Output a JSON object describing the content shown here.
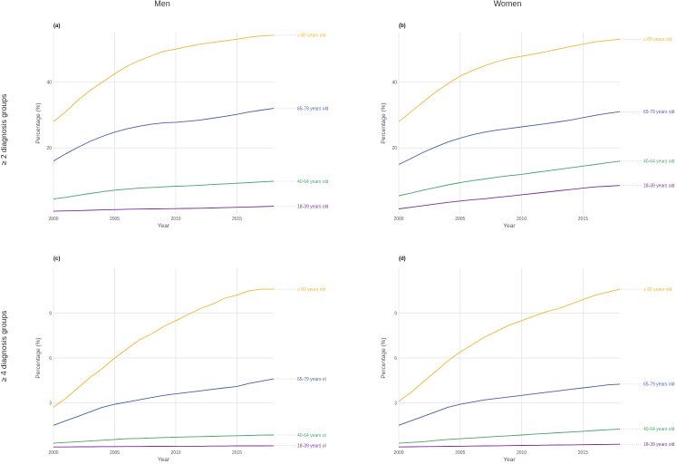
{
  "figure": {
    "col_titles": [
      "Men",
      "Women"
    ],
    "row_titles": [
      "≥ 2 diagnosis groups",
      "≥ 4 diagnosis groups"
    ]
  },
  "colors": {
    "80plus": "#f2b634",
    "65-79": "#4a5fa8",
    "40-64": "#4aa36b",
    "18-39": "#7b2f9b"
  },
  "chart_data": [
    {
      "type": "line",
      "panel": "(a)",
      "title": "(a)",
      "xlabel": "Year",
      "ylabel": "Percentage (%)",
      "xlim": [
        2000,
        2018
      ],
      "ylim": [
        0,
        55
      ],
      "xticks": [
        2000,
        2005,
        2010,
        2015
      ],
      "yticks": [
        20,
        40
      ],
      "x": [
        2000,
        2001,
        2002,
        2003,
        2004,
        2005,
        2006,
        2007,
        2008,
        2009,
        2010,
        2011,
        2012,
        2013,
        2014,
        2015,
        2016,
        2017,
        2018
      ],
      "series": [
        {
          "key": "80plus",
          "name": "≥ 80 years old",
          "values": [
            28,
            31,
            34.5,
            37.5,
            40,
            42.5,
            44.8,
            46.5,
            48,
            49.3,
            50,
            50.8,
            51.5,
            52,
            52.5,
            53,
            53.6,
            54,
            54.2
          ]
        },
        {
          "key": "65-79",
          "name": "65-79 years old",
          "values": [
            16,
            18.2,
            20.2,
            22,
            23.5,
            24.8,
            25.8,
            26.6,
            27.2,
            27.6,
            27.8,
            28.1,
            28.5,
            29,
            29.6,
            30.2,
            30.9,
            31.5,
            32
          ]
        },
        {
          "key": "40-64",
          "name": "40-64 years old",
          "values": [
            4.5,
            5,
            5.6,
            6.2,
            6.7,
            7.2,
            7.5,
            7.8,
            8,
            8.2,
            8.4,
            8.5,
            8.7,
            8.9,
            9.1,
            9.3,
            9.5,
            9.7,
            9.9
          ]
        },
        {
          "key": "18-39",
          "name": "18-39 years old",
          "values": [
            0.8,
            0.9,
            1.0,
            1.1,
            1.2,
            1.3,
            1.4,
            1.45,
            1.5,
            1.55,
            1.6,
            1.65,
            1.7,
            1.8,
            1.9,
            2.0,
            2.1,
            2.2,
            2.3
          ]
        }
      ]
    },
    {
      "type": "line",
      "panel": "(b)",
      "title": "(b)",
      "xlabel": "Year",
      "ylabel": "Percentage (%)",
      "xlim": [
        2000,
        2018
      ],
      "ylim": [
        0,
        55
      ],
      "xticks": [
        2000,
        2005,
        2010,
        2015
      ],
      "yticks": [
        20,
        40
      ],
      "x": [
        2000,
        2001,
        2002,
        2003,
        2004,
        2005,
        2006,
        2007,
        2008,
        2009,
        2010,
        2011,
        2012,
        2013,
        2014,
        2015,
        2016,
        2017,
        2018
      ],
      "series": [
        {
          "key": "80plus",
          "name": "≥ 80 years old",
          "values": [
            28,
            31,
            34,
            37,
            39.5,
            41.8,
            43.5,
            45,
            46.2,
            47.2,
            47.8,
            48.5,
            49.2,
            50,
            50.8,
            51.5,
            52.2,
            52.6,
            53
          ]
        },
        {
          "key": "65-79",
          "name": "65-79 years old",
          "values": [
            15,
            16.8,
            18.7,
            20.3,
            21.8,
            23,
            24,
            24.8,
            25.4,
            25.9,
            26.4,
            26.9,
            27.4,
            27.9,
            28.5,
            29.2,
            29.9,
            30.5,
            31
          ]
        },
        {
          "key": "40-64",
          "name": "40-64 years old",
          "values": [
            5.5,
            6.3,
            7.2,
            8,
            8.8,
            9.5,
            10.1,
            10.6,
            11.1,
            11.6,
            12,
            12.5,
            13,
            13.5,
            14,
            14.5,
            15,
            15.5,
            16
          ]
        },
        {
          "key": "18-39",
          "name": "18-39 years old",
          "values": [
            1.5,
            2,
            2.5,
            3,
            3.5,
            3.9,
            4.3,
            4.6,
            5,
            5.4,
            5.8,
            6.2,
            6.6,
            7,
            7.4,
            7.8,
            8.2,
            8.4,
            8.6
          ]
        }
      ]
    },
    {
      "type": "line",
      "panel": "(c)",
      "title": "(c)",
      "xlabel": "Year",
      "ylabel": "Percentage (%)",
      "xlim": [
        2000,
        2018
      ],
      "ylim": [
        0,
        12
      ],
      "xticks": [
        2000,
        2005,
        2010,
        2015
      ],
      "yticks": [
        3,
        6,
        9
      ],
      "x": [
        2000,
        2001,
        2002,
        2003,
        2004,
        2005,
        2006,
        2007,
        2008,
        2009,
        2010,
        2011,
        2012,
        2013,
        2014,
        2015,
        2016,
        2017,
        2018
      ],
      "series": [
        {
          "key": "80plus",
          "name": "≥ 80 years old",
          "values": [
            2.7,
            3.3,
            4,
            4.7,
            5.3,
            6,
            6.6,
            7.2,
            7.6,
            8.1,
            8.5,
            8.9,
            9.3,
            9.6,
            10,
            10.2,
            10.5,
            10.6,
            10.6
          ]
        },
        {
          "key": "65-79",
          "name": "65-79 years ol",
          "values": [
            1.5,
            1.8,
            2.1,
            2.4,
            2.7,
            2.9,
            3.05,
            3.2,
            3.35,
            3.5,
            3.6,
            3.7,
            3.8,
            3.9,
            4.0,
            4.1,
            4.3,
            4.45,
            4.6
          ]
        },
        {
          "key": "40-64",
          "name": "40-64 years ol",
          "values": [
            0.3,
            0.35,
            0.4,
            0.45,
            0.5,
            0.55,
            0.6,
            0.62,
            0.65,
            0.68,
            0.7,
            0.72,
            0.74,
            0.76,
            0.78,
            0.8,
            0.82,
            0.84,
            0.85
          ]
        },
        {
          "key": "18-39",
          "name": "18-39 years ol",
          "values": [
            0.05,
            0.05,
            0.06,
            0.06,
            0.07,
            0.07,
            0.08,
            0.08,
            0.09,
            0.09,
            0.1,
            0.1,
            0.1,
            0.11,
            0.11,
            0.12,
            0.12,
            0.12,
            0.13
          ]
        }
      ]
    },
    {
      "type": "line",
      "panel": "(d)",
      "title": "(d)",
      "xlabel": "Year",
      "ylabel": "Percentage (%)",
      "xlim": [
        2000,
        2018
      ],
      "ylim": [
        0,
        12
      ],
      "xticks": [
        2000,
        2005,
        2010,
        2015
      ],
      "yticks": [
        3,
        6,
        9
      ],
      "x": [
        2000,
        2001,
        2002,
        2003,
        2004,
        2005,
        2006,
        2007,
        2008,
        2009,
        2010,
        2011,
        2012,
        2013,
        2014,
        2015,
        2016,
        2017,
        2018
      ],
      "series": [
        {
          "key": "80plus",
          "name": "≥ 80 years old",
          "values": [
            3.1,
            3.7,
            4.4,
            5.1,
            5.8,
            6.4,
            6.9,
            7.4,
            7.8,
            8.2,
            8.5,
            8.8,
            9.1,
            9.3,
            9.6,
            9.9,
            10.2,
            10.4,
            10.6
          ]
        },
        {
          "key": "65-79",
          "name": "65-79 years old",
          "values": [
            1.5,
            1.8,
            2.1,
            2.4,
            2.7,
            2.9,
            3.05,
            3.2,
            3.3,
            3.4,
            3.5,
            3.6,
            3.7,
            3.8,
            3.9,
            4.0,
            4.1,
            4.2,
            4.25
          ]
        },
        {
          "key": "40-64",
          "name": "40-64 years old",
          "values": [
            0.3,
            0.35,
            0.4,
            0.48,
            0.55,
            0.6,
            0.65,
            0.7,
            0.75,
            0.8,
            0.85,
            0.9,
            0.95,
            1.0,
            1.05,
            1.1,
            1.15,
            1.2,
            1.25
          ]
        },
        {
          "key": "18-39",
          "name": "18-39 years old",
          "values": [
            0.05,
            0.06,
            0.07,
            0.08,
            0.09,
            0.1,
            0.11,
            0.12,
            0.13,
            0.14,
            0.15,
            0.16,
            0.17,
            0.18,
            0.19,
            0.2,
            0.21,
            0.22,
            0.23
          ]
        }
      ]
    }
  ]
}
